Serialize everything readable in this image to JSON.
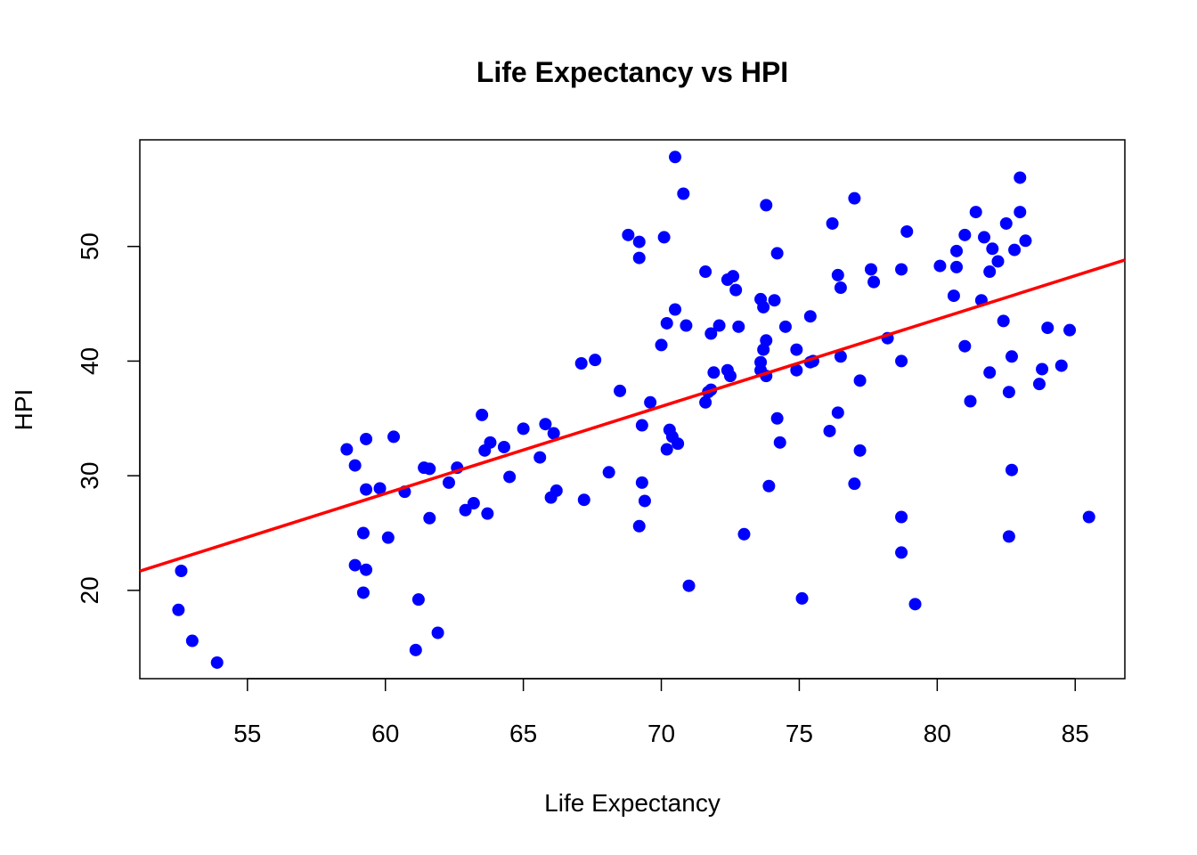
{
  "chart_data": {
    "type": "scatter",
    "title": "Life Expectancy vs HPI",
    "xlabel": "Life Expectancy",
    "ylabel": "HPI",
    "xlim": [
      51.1,
      86.8
    ],
    "ylim": [
      12.3,
      59.3
    ],
    "x_ticks": [
      55,
      60,
      65,
      70,
      75,
      80,
      85
    ],
    "y_ticks": [
      20,
      30,
      40,
      50
    ],
    "x_tick_labels": [
      "55",
      "60",
      "65",
      "70",
      "75",
      "80",
      "85"
    ],
    "y_tick_labels": [
      "20",
      "30",
      "40",
      "50"
    ],
    "grid": false,
    "point_color": "#0000ff",
    "fit_color": "#ff0000",
    "fit_line": {
      "intercept": -17.16,
      "slope": 0.7601
    },
    "points": [
      {
        "x": 52.5,
        "y": 18.3
      },
      {
        "x": 52.6,
        "y": 21.7
      },
      {
        "x": 53.0,
        "y": 15.6
      },
      {
        "x": 53.9,
        "y": 13.7
      },
      {
        "x": 58.6,
        "y": 32.3
      },
      {
        "x": 58.9,
        "y": 30.9
      },
      {
        "x": 58.9,
        "y": 22.2
      },
      {
        "x": 59.2,
        "y": 25.0
      },
      {
        "x": 59.3,
        "y": 21.8
      },
      {
        "x": 59.2,
        "y": 19.8
      },
      {
        "x": 59.3,
        "y": 28.8
      },
      {
        "x": 59.3,
        "y": 33.2
      },
      {
        "x": 59.8,
        "y": 28.9
      },
      {
        "x": 60.1,
        "y": 24.6
      },
      {
        "x": 60.3,
        "y": 33.4
      },
      {
        "x": 60.7,
        "y": 28.6
      },
      {
        "x": 61.1,
        "y": 14.8
      },
      {
        "x": 61.2,
        "y": 19.2
      },
      {
        "x": 61.4,
        "y": 30.7
      },
      {
        "x": 61.6,
        "y": 30.6
      },
      {
        "x": 61.6,
        "y": 26.3
      },
      {
        "x": 61.9,
        "y": 16.3
      },
      {
        "x": 62.3,
        "y": 29.4
      },
      {
        "x": 62.6,
        "y": 30.7
      },
      {
        "x": 62.9,
        "y": 27.0
      },
      {
        "x": 63.2,
        "y": 27.6
      },
      {
        "x": 63.5,
        "y": 35.3
      },
      {
        "x": 63.6,
        "y": 32.2
      },
      {
        "x": 63.7,
        "y": 26.7
      },
      {
        "x": 63.8,
        "y": 32.9
      },
      {
        "x": 64.3,
        "y": 32.5
      },
      {
        "x": 64.5,
        "y": 29.9
      },
      {
        "x": 65.0,
        "y": 34.1
      },
      {
        "x": 65.6,
        "y": 31.6
      },
      {
        "x": 65.8,
        "y": 34.5
      },
      {
        "x": 66.0,
        "y": 28.1
      },
      {
        "x": 66.1,
        "y": 33.7
      },
      {
        "x": 66.2,
        "y": 28.7
      },
      {
        "x": 67.1,
        "y": 39.8
      },
      {
        "x": 67.2,
        "y": 27.9
      },
      {
        "x": 67.6,
        "y": 40.1
      },
      {
        "x": 68.1,
        "y": 30.3
      },
      {
        "x": 68.5,
        "y": 37.4
      },
      {
        "x": 68.8,
        "y": 51.0
      },
      {
        "x": 69.2,
        "y": 50.4
      },
      {
        "x": 69.2,
        "y": 49.0
      },
      {
        "x": 69.2,
        "y": 25.6
      },
      {
        "x": 69.3,
        "y": 34.4
      },
      {
        "x": 69.3,
        "y": 29.4
      },
      {
        "x": 69.4,
        "y": 27.8
      },
      {
        "x": 69.6,
        "y": 36.4
      },
      {
        "x": 70.0,
        "y": 41.4
      },
      {
        "x": 70.1,
        "y": 50.8
      },
      {
        "x": 70.2,
        "y": 43.3
      },
      {
        "x": 70.2,
        "y": 32.3
      },
      {
        "x": 70.3,
        "y": 34.0
      },
      {
        "x": 70.4,
        "y": 33.4
      },
      {
        "x": 70.5,
        "y": 44.5
      },
      {
        "x": 70.5,
        "y": 57.8
      },
      {
        "x": 70.6,
        "y": 32.8
      },
      {
        "x": 70.8,
        "y": 54.6
      },
      {
        "x": 70.9,
        "y": 43.1
      },
      {
        "x": 71.0,
        "y": 20.4
      },
      {
        "x": 71.6,
        "y": 47.8
      },
      {
        "x": 71.6,
        "y": 36.4
      },
      {
        "x": 71.7,
        "y": 37.3
      },
      {
        "x": 71.8,
        "y": 42.4
      },
      {
        "x": 71.8,
        "y": 37.5
      },
      {
        "x": 71.9,
        "y": 39.0
      },
      {
        "x": 72.1,
        "y": 43.1
      },
      {
        "x": 72.4,
        "y": 47.1
      },
      {
        "x": 72.4,
        "y": 39.2
      },
      {
        "x": 72.5,
        "y": 38.7
      },
      {
        "x": 72.6,
        "y": 47.4
      },
      {
        "x": 72.7,
        "y": 46.2
      },
      {
        "x": 72.8,
        "y": 43.0
      },
      {
        "x": 73.0,
        "y": 24.9
      },
      {
        "x": 73.6,
        "y": 45.4
      },
      {
        "x": 73.6,
        "y": 39.9
      },
      {
        "x": 73.6,
        "y": 39.2
      },
      {
        "x": 73.7,
        "y": 44.7
      },
      {
        "x": 73.7,
        "y": 41.0
      },
      {
        "x": 73.8,
        "y": 38.7
      },
      {
        "x": 73.8,
        "y": 41.8
      },
      {
        "x": 73.8,
        "y": 53.6
      },
      {
        "x": 73.9,
        "y": 29.1
      },
      {
        "x": 74.1,
        "y": 45.3
      },
      {
        "x": 74.2,
        "y": 49.4
      },
      {
        "x": 74.2,
        "y": 35.0
      },
      {
        "x": 74.3,
        "y": 32.9
      },
      {
        "x": 74.5,
        "y": 43.0
      },
      {
        "x": 74.9,
        "y": 41.0
      },
      {
        "x": 74.9,
        "y": 39.2
      },
      {
        "x": 75.1,
        "y": 19.3
      },
      {
        "x": 75.4,
        "y": 39.9
      },
      {
        "x": 75.5,
        "y": 40.0
      },
      {
        "x": 75.4,
        "y": 43.9
      },
      {
        "x": 76.1,
        "y": 33.9
      },
      {
        "x": 76.2,
        "y": 52.0
      },
      {
        "x": 76.4,
        "y": 47.5
      },
      {
        "x": 76.4,
        "y": 35.5
      },
      {
        "x": 76.5,
        "y": 46.4
      },
      {
        "x": 76.5,
        "y": 40.4
      },
      {
        "x": 77.0,
        "y": 54.2
      },
      {
        "x": 77.0,
        "y": 29.3
      },
      {
        "x": 77.2,
        "y": 32.2
      },
      {
        "x": 77.2,
        "y": 38.3
      },
      {
        "x": 77.6,
        "y": 48.0
      },
      {
        "x": 77.7,
        "y": 46.9
      },
      {
        "x": 78.2,
        "y": 42.0
      },
      {
        "x": 78.7,
        "y": 48.0
      },
      {
        "x": 78.7,
        "y": 40.0
      },
      {
        "x": 78.7,
        "y": 26.4
      },
      {
        "x": 78.7,
        "y": 23.3
      },
      {
        "x": 78.9,
        "y": 51.3
      },
      {
        "x": 79.2,
        "y": 18.8
      },
      {
        "x": 80.1,
        "y": 48.3
      },
      {
        "x": 80.6,
        "y": 45.7
      },
      {
        "x": 80.7,
        "y": 48.2
      },
      {
        "x": 80.7,
        "y": 49.6
      },
      {
        "x": 81.0,
        "y": 41.3
      },
      {
        "x": 81.0,
        "y": 51.0
      },
      {
        "x": 81.2,
        "y": 36.5
      },
      {
        "x": 81.4,
        "y": 53.0
      },
      {
        "x": 81.6,
        "y": 45.3
      },
      {
        "x": 81.7,
        "y": 50.8
      },
      {
        "x": 81.9,
        "y": 39.0
      },
      {
        "x": 81.9,
        "y": 47.8
      },
      {
        "x": 82.0,
        "y": 49.8
      },
      {
        "x": 82.2,
        "y": 48.7
      },
      {
        "x": 82.4,
        "y": 43.5
      },
      {
        "x": 82.5,
        "y": 52.0
      },
      {
        "x": 82.6,
        "y": 37.3
      },
      {
        "x": 82.7,
        "y": 40.4
      },
      {
        "x": 82.7,
        "y": 30.5
      },
      {
        "x": 82.6,
        "y": 24.7
      },
      {
        "x": 82.8,
        "y": 49.7
      },
      {
        "x": 83.0,
        "y": 53.0
      },
      {
        "x": 83.0,
        "y": 56.0
      },
      {
        "x": 83.2,
        "y": 50.5
      },
      {
        "x": 83.7,
        "y": 38.0
      },
      {
        "x": 83.8,
        "y": 39.3
      },
      {
        "x": 84.0,
        "y": 42.9
      },
      {
        "x": 84.5,
        "y": 39.6
      },
      {
        "x": 84.8,
        "y": 42.7
      },
      {
        "x": 85.5,
        "y": 26.4
      }
    ]
  }
}
